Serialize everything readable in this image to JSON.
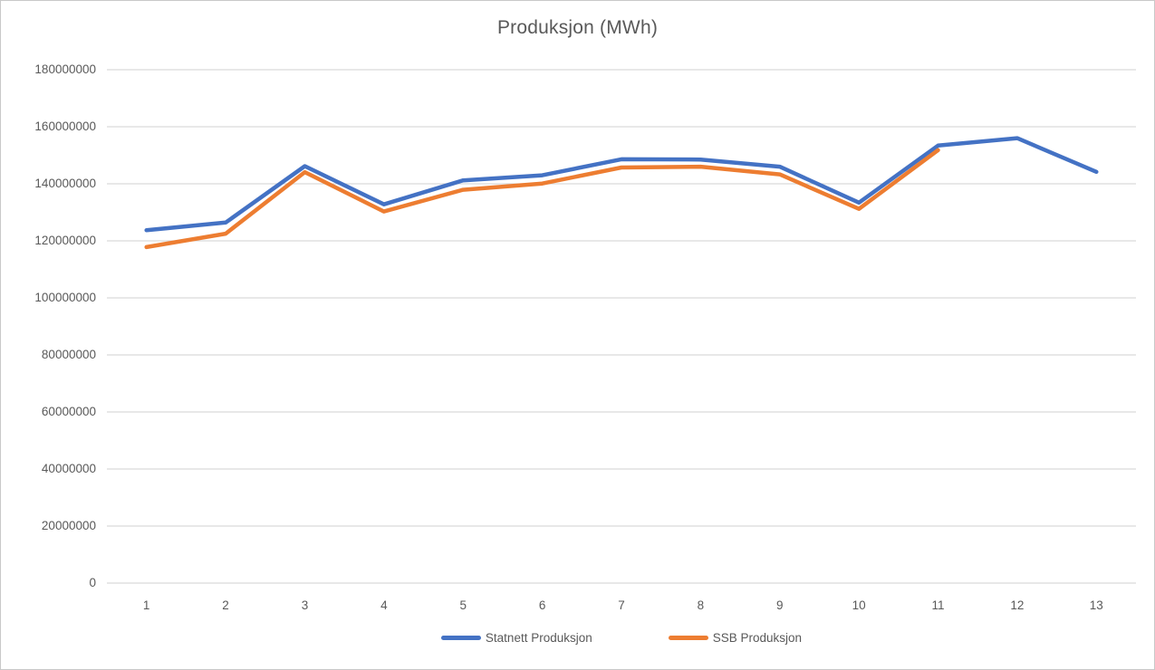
{
  "chart_data": {
    "type": "line",
    "title": "Produksjon (MWh)",
    "categories": [
      "1",
      "2",
      "3",
      "4",
      "5",
      "6",
      "7",
      "8",
      "9",
      "10",
      "11",
      "12",
      "13"
    ],
    "series": [
      {
        "name": "Statnett Produksjon",
        "color": "#4472C4",
        "values": [
          123700000,
          126400000,
          146200000,
          132800000,
          141200000,
          143000000,
          148600000,
          148500000,
          146000000,
          133400000,
          153400000,
          156000000,
          144200000
        ]
      },
      {
        "name": "SSB Produksjon",
        "color": "#ED7D31",
        "values": [
          117800000,
          122500000,
          144100000,
          130300000,
          137900000,
          140100000,
          145700000,
          146000000,
          143300000,
          131200000,
          151800000,
          null,
          null
        ]
      }
    ],
    "ylim": [
      0,
      180000000
    ],
    "y_tick_step": 20000000,
    "y_ticks": [
      "180000000",
      "160000000",
      "140000000",
      "120000000",
      "100000000",
      "80000000",
      "60000000",
      "40000000",
      "20000000",
      "0"
    ],
    "xlabel": "",
    "ylabel": "",
    "grid": true,
    "legend_position": "bottom-center"
  },
  "colors": {
    "grid": "#D9D9D9",
    "axis": "#D9D9D9",
    "text": "#595959",
    "background": "#FFFFFF",
    "frame_border": "#C9C9C9"
  }
}
